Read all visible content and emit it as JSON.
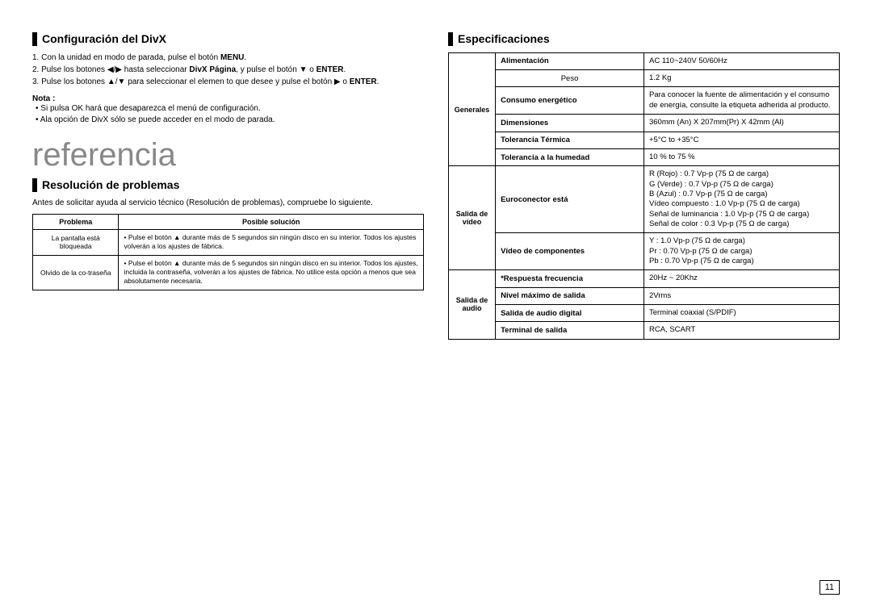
{
  "left": {
    "heading1": "Configuración del DivX",
    "steps": [
      {
        "pre": "1. Con la unidad en modo de parada, pulse el botón ",
        "b1": "MENU",
        "post": "."
      },
      {
        "pre": "2. Pulse los botones ◀/▶ hasta seleccionar ",
        "b1": "DivX Página",
        "mid": ", y pulse el botón ▼ o ",
        "b2": "ENTER",
        "post": "."
      },
      {
        "pre": "3. Pulse los botones ▲/▼ para seleccionar el elemen to que desee y pulse el botón ▶ o ",
        "b1": "ENTER",
        "post": "."
      }
    ],
    "nota_title": "Nota :",
    "nota_items": [
      "Si pulsa OK hará que desaparezca el menú de configuración.",
      "Ala opción de DivX sólo se puede acceder en el modo de parada."
    ],
    "big_title": "referencia",
    "heading2": "Resolución de problemas",
    "intro": "Antes de solicitar ayuda al servicio técnico (Resolución de problemas), compruebe lo siguiente.",
    "problems_headers": [
      "Problema",
      "Posible solución"
    ],
    "problems_rows": [
      {
        "problem": "La pantalla está bloqueada",
        "solution": "Pulse el botón ▲ durante más de 5 segundos sin ningún disco en su interior. Todos los ajustes volverán a los ajustes de fábrica."
      },
      {
        "problem": "Olvido de la co-traseña",
        "solution": "Pulse el botón ▲ durante más de 5 segundos sin ningún disco en su interior. Todos los ajustes, incluida la contraseña, volverán a los ajustes de fábrica. No utilice esta opción a menos que sea absolutamente necesaria."
      }
    ]
  },
  "right": {
    "heading": "Especificaciones",
    "rows": [
      {
        "group": "Generales",
        "groupspan": 6,
        "label": "Alimentación",
        "value": "AC 110~240V 50/60Hz",
        "label_bold": true
      },
      {
        "label": "Peso",
        "value": "1.2 Kg",
        "label_bold": false,
        "label_center": true
      },
      {
        "label": "Consumo energético",
        "value": "Para conocer la fuente de alimentación y el consumo de energía, consulte la etiqueta adherida al producto.",
        "label_bold": true
      },
      {
        "label": "Dimensiones",
        "value": "360mm (An) X 207mm(Pr) X 42mm (Al)",
        "label_bold": true
      },
      {
        "label": "Tolerancia Térmica",
        "value": "+5°C to +35°C",
        "label_bold": true
      },
      {
        "label": "Tolerancia a la humedad",
        "value": "10 % to 75 %",
        "label_bold": true
      },
      {
        "group": "Salida de vídeo",
        "groupspan": 2,
        "label": "Euroconector está",
        "value": "R (Rojo) : 0.7 Vp-p (75 Ω de carga)\nG (Verde) : 0.7 Vp-p (75 Ω de carga)\nB (Azul) : 0.7 Vp-p (75 Ω de carga)\nVídeo compuesto : 1.0 Vp-p (75 Ω de carga)\nSeñal de luminancia : 1.0 Vp-p (75 Ω de carga)\nSeñal de color : 0.3 Vp-p (75 Ω de carga)",
        "label_bold": true
      },
      {
        "label": "Vídeo de componentes",
        "value": "Y : 1.0 Vp-p (75 Ω de carga)\nPr : 0.70 Vp-p (75 Ω de carga)\nPb : 0.70 Vp-p (75 Ω de carga)",
        "label_bold": true
      },
      {
        "group": "Salida de audio",
        "groupspan": 4,
        "label": "*Respuesta frecuencia",
        "value": "20Hz ~ 20Khz",
        "label_bold": true
      },
      {
        "label": "Nivel máximo de salida",
        "value": "2Vrms",
        "label_bold": true
      },
      {
        "label": "Salida de audio digital",
        "value": "Terminal coaxial (S/PDIF)",
        "label_bold": true
      },
      {
        "label": "Terminal de salida",
        "value": "RCA, SCART",
        "label_bold": true
      }
    ]
  },
  "page_number": "11"
}
